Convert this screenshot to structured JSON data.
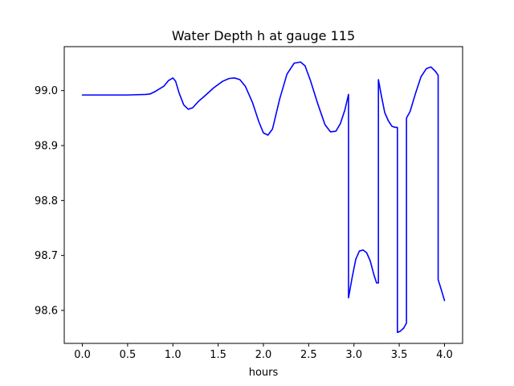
{
  "chart_data": {
    "type": "line",
    "title": "Water Depth h at gauge 115",
    "xlabel": "hours",
    "ylabel": "",
    "xlim": [
      -0.2,
      4.2
    ],
    "ylim": [
      98.54,
      99.08
    ],
    "xticks": [
      0.0,
      0.5,
      1.0,
      1.5,
      2.0,
      2.5,
      3.0,
      3.5,
      4.0
    ],
    "xtick_labels": [
      "0.0",
      "0.5",
      "1.0",
      "1.5",
      "2.0",
      "2.5",
      "3.0",
      "3.5",
      "4.0"
    ],
    "yticks": [
      98.6,
      98.7,
      98.8,
      98.9,
      99.0
    ],
    "ytick_labels": [
      "98.6",
      "98.7",
      "98.8",
      "98.9",
      "99.0"
    ],
    "grid": false,
    "line_color": "#0000ff",
    "series": [
      {
        "x": [
          0.0,
          0.25,
          0.5,
          0.7,
          0.75,
          0.8,
          0.9,
          0.95,
          1.0,
          1.03,
          1.07,
          1.12,
          1.17,
          1.22,
          1.28,
          1.35,
          1.45,
          1.55,
          1.62,
          1.68,
          1.74,
          1.8,
          1.88,
          1.95,
          2.0,
          2.05,
          2.1,
          2.18,
          2.26,
          2.34,
          2.41,
          2.46,
          2.52,
          2.6,
          2.68,
          2.74,
          2.8,
          2.85,
          2.9,
          2.94,
          2.94,
          2.98,
          3.02,
          3.06,
          3.1,
          3.14,
          3.18,
          3.22,
          3.25,
          3.27,
          3.27,
          3.3,
          3.34,
          3.38,
          3.42,
          3.46,
          3.48,
          3.48,
          3.51,
          3.55,
          3.58,
          3.58,
          3.62,
          3.68,
          3.74,
          3.8,
          3.85,
          3.9,
          3.93,
          3.93,
          3.96,
          4.0
        ],
        "values": [
          98.992,
          98.992,
          98.992,
          98.993,
          98.994,
          98.998,
          99.008,
          99.018,
          99.023,
          99.017,
          98.995,
          98.974,
          98.966,
          98.969,
          98.98,
          98.99,
          99.005,
          99.017,
          99.022,
          99.023,
          99.02,
          99.008,
          98.978,
          98.943,
          98.923,
          98.919,
          98.93,
          98.985,
          99.03,
          99.05,
          99.052,
          99.045,
          99.018,
          98.976,
          98.938,
          98.925,
          98.926,
          98.94,
          98.965,
          98.993,
          98.623,
          98.66,
          98.693,
          98.708,
          98.71,
          98.705,
          98.69,
          98.665,
          98.65,
          98.65,
          99.02,
          98.993,
          98.96,
          98.945,
          98.935,
          98.933,
          98.933,
          98.56,
          98.562,
          98.568,
          98.577,
          98.95,
          98.962,
          98.995,
          99.025,
          99.04,
          99.043,
          99.035,
          99.028,
          98.656,
          98.64,
          98.618
        ]
      }
    ]
  }
}
